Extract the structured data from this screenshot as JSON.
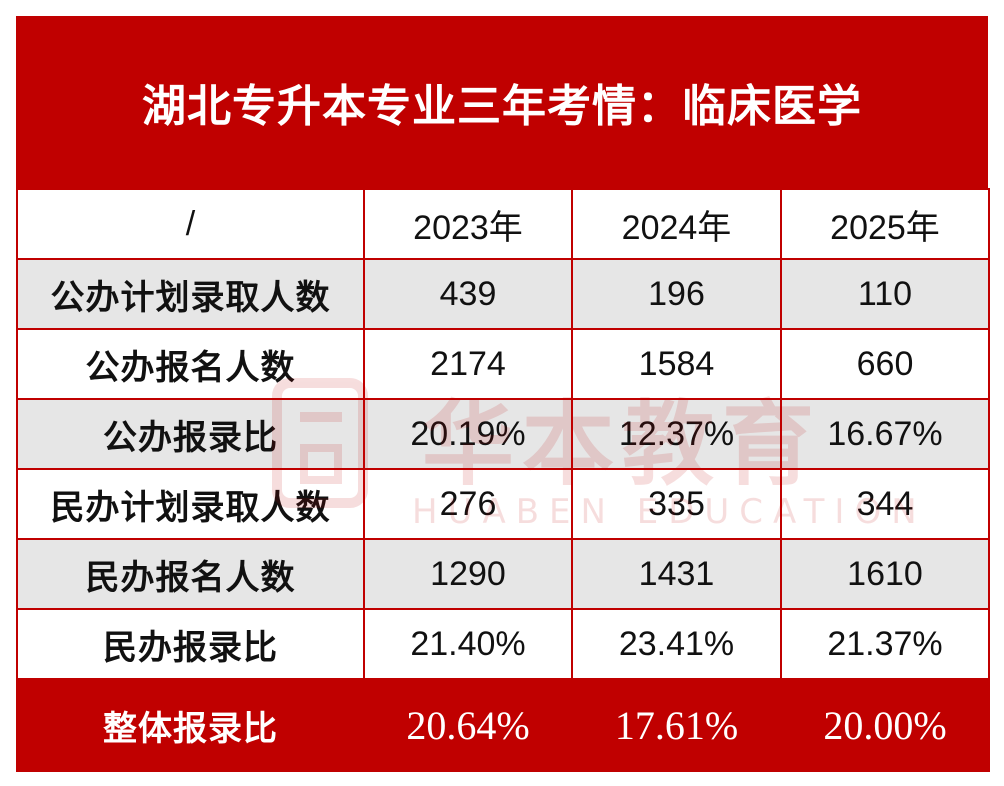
{
  "title": "湖北专升本专业三年考情：临床医学",
  "header": [
    "/",
    "2023年",
    "2024年",
    "2025年"
  ],
  "rows": [
    {
      "label": "公办计划录取人数",
      "values": [
        "439",
        "196",
        "110"
      ]
    },
    {
      "label": "公办报名人数",
      "values": [
        "2174",
        "1584",
        "660"
      ]
    },
    {
      "label": "公办报录比",
      "values": [
        "20.19%",
        "12.37%",
        "16.67%"
      ]
    },
    {
      "label": "民办计划录取人数",
      "values": [
        "276",
        "335",
        "344"
      ]
    },
    {
      "label": "民办报名人数",
      "values": [
        "1290",
        "1431",
        "1610"
      ]
    },
    {
      "label": "民办报录比",
      "values": [
        "21.40%",
        "23.41%",
        "21.37%"
      ]
    }
  ],
  "total": {
    "label": "整体报录比",
    "values": [
      "20.64%",
      "17.61%",
      "20.00%"
    ]
  },
  "watermark": {
    "cn": "华本教育",
    "en": "HUABEN EDUCATION"
  },
  "colors": {
    "accent": "#c00000",
    "row_alt": "#e6e6e6"
  }
}
